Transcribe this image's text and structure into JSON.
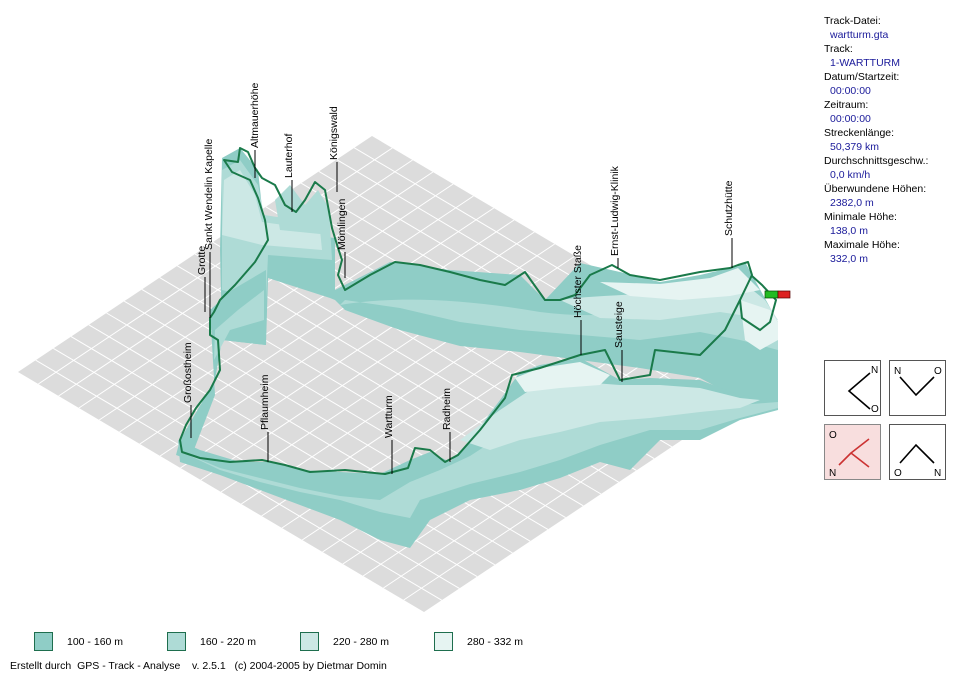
{
  "info": [
    {
      "label": "Track-Datei:",
      "value": "wartturm.gta"
    },
    {
      "label": "Track:",
      "value": "1-WARTTURM"
    },
    {
      "label": "Datum/Startzeit:",
      "value": "00:00:00"
    },
    {
      "label": "Zeitraum:",
      "value": "00:00:00"
    },
    {
      "label": "Streckenlänge:",
      "value": "50,379 km"
    },
    {
      "label": "Durchschnittsgeschw.:",
      "value": "0,0 km/h"
    },
    {
      "label": "Überwundene Höhen:",
      "value": "2382,0 m"
    },
    {
      "label": "Minimale Höhe:",
      "value": "138,0 m"
    },
    {
      "label": "Maximale Höhe:",
      "value": "332,0 m"
    }
  ],
  "waypoints": [
    "Altmauerhöhe",
    "Lauterhof",
    "Königswald",
    "Mömlingen",
    "Sankt Wendelin Kapelle",
    "Grotte",
    "Großostheim",
    "Pflaumheim",
    "Wartturm",
    "Radheim",
    "Höchster Staße",
    "Sausteige",
    "Ernst-Ludwig-Klinik",
    "Schutzhütte"
  ],
  "compass": [
    {
      "name": "view-north-east",
      "letters": [
        "N",
        "O"
      ],
      "active": false
    },
    {
      "name": "view-north-west",
      "letters": [
        "N",
        "O"
      ],
      "active": false
    },
    {
      "name": "view-south-west",
      "letters": [
        "O",
        "N"
      ],
      "active": true
    },
    {
      "name": "view-south-east",
      "letters": [
        "O",
        "N"
      ],
      "active": false
    }
  ],
  "legend": [
    {
      "label": "100 - 160 m",
      "color": "#8fcdc6"
    },
    {
      "label": "160 - 220 m",
      "color": "#aedbd6"
    },
    {
      "label": "220 - 280 m",
      "color": "#cce8e5"
    },
    {
      "label": "280 - 332 m",
      "color": "#e6f4f2"
    }
  ],
  "colors": {
    "track": "#1a7a4a",
    "floor": "#dcdcdc",
    "grid": "#ffffff",
    "start_flag": "#22bb22",
    "end_flag": "#dd2222"
  },
  "footer": "Erstellt durch  GPS - Track - Analyse    v. 2.5.1   (c) 2004-2005 by Dietmar Domin"
}
